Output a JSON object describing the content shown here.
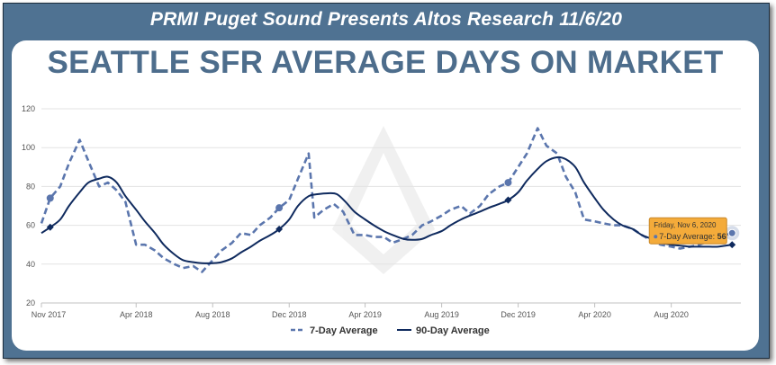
{
  "header": {
    "banner": "PRMI Puget Sound Presents Altos Research 11/6/20"
  },
  "chart_data": {
    "type": "line",
    "title": "SEATTLE SFR AVERAGE DAYS ON MARKET",
    "ylim": [
      20,
      120
    ],
    "yticks": [
      20,
      40,
      60,
      80,
      100,
      120
    ],
    "xlim": [
      "2017-11-01",
      "2020-11-20"
    ],
    "xticks": [
      {
        "date": "2017-11-01",
        "label": "Nov 2017"
      },
      {
        "date": "2018-04-01",
        "label": "Apr 2018"
      },
      {
        "date": "2018-08-01",
        "label": "Aug 2018"
      },
      {
        "date": "2018-12-01",
        "label": "Dec 2018"
      },
      {
        "date": "2019-04-01",
        "label": "Apr 2019"
      },
      {
        "date": "2019-08-01",
        "label": "Aug 2019"
      },
      {
        "date": "2019-12-01",
        "label": "Dec 2019"
      },
      {
        "date": "2020-04-01",
        "label": "Apr 2020"
      },
      {
        "date": "2020-08-01",
        "label": "Aug 2020"
      }
    ],
    "grid": true,
    "legend_position": "bottom",
    "colors": {
      "seven_day": "#5b76ad",
      "ninety_day": "#0f2a5e",
      "tooltip_bg": "#f4ab3a",
      "tooltip_border": "#c8882a"
    },
    "series": [
      {
        "name": "7-Day Average",
        "style": "dashed",
        "points": [
          [
            "2017-11-01",
            61
          ],
          [
            "2017-11-15",
            74
          ],
          [
            "2017-12-01",
            80
          ],
          [
            "2017-12-15",
            92
          ],
          [
            "2018-01-01",
            104
          ],
          [
            "2018-01-15",
            93
          ],
          [
            "2018-02-01",
            80
          ],
          [
            "2018-02-15",
            82
          ],
          [
            "2018-03-01",
            78
          ],
          [
            "2018-03-15",
            72
          ],
          [
            "2018-04-01",
            50
          ],
          [
            "2018-04-15",
            50
          ],
          [
            "2018-05-01",
            47
          ],
          [
            "2018-05-15",
            43
          ],
          [
            "2018-06-01",
            40
          ],
          [
            "2018-06-15",
            38
          ],
          [
            "2018-07-01",
            39
          ],
          [
            "2018-07-15",
            36
          ],
          [
            "2018-08-01",
            42
          ],
          [
            "2018-08-15",
            47
          ],
          [
            "2018-09-01",
            51
          ],
          [
            "2018-09-15",
            56
          ],
          [
            "2018-10-01",
            55
          ],
          [
            "2018-10-15",
            60
          ],
          [
            "2018-11-01",
            64
          ],
          [
            "2018-11-15",
            69
          ],
          [
            "2018-12-01",
            73
          ],
          [
            "2018-12-15",
            84
          ],
          [
            "2019-01-01",
            97
          ],
          [
            "2019-01-10",
            64
          ],
          [
            "2019-01-25",
            68
          ],
          [
            "2019-02-10",
            71
          ],
          [
            "2019-02-25",
            67
          ],
          [
            "2019-03-15",
            55
          ],
          [
            "2019-04-01",
            55
          ],
          [
            "2019-04-15",
            54
          ],
          [
            "2019-05-01",
            54
          ],
          [
            "2019-05-15",
            51
          ],
          [
            "2019-06-01",
            53
          ],
          [
            "2019-06-15",
            55
          ],
          [
            "2019-07-01",
            60
          ],
          [
            "2019-07-15",
            62
          ],
          [
            "2019-08-01",
            65
          ],
          [
            "2019-08-15",
            68
          ],
          [
            "2019-09-01",
            70
          ],
          [
            "2019-09-15",
            66
          ],
          [
            "2019-10-01",
            70
          ],
          [
            "2019-10-15",
            76
          ],
          [
            "2019-11-01",
            80
          ],
          [
            "2019-11-15",
            82
          ],
          [
            "2019-12-01",
            90
          ],
          [
            "2019-12-15",
            97
          ],
          [
            "2020-01-01",
            110
          ],
          [
            "2020-01-15",
            101
          ],
          [
            "2020-02-01",
            97
          ],
          [
            "2020-02-15",
            85
          ],
          [
            "2020-03-01",
            77
          ],
          [
            "2020-03-15",
            63
          ],
          [
            "2020-04-01",
            62
          ],
          [
            "2020-04-15",
            61
          ],
          [
            "2020-05-01",
            60
          ],
          [
            "2020-05-15",
            60
          ],
          [
            "2020-06-01",
            58
          ],
          [
            "2020-06-15",
            55
          ],
          [
            "2020-07-01",
            52
          ],
          [
            "2020-07-15",
            50
          ],
          [
            "2020-08-01",
            49
          ],
          [
            "2020-08-15",
            48
          ],
          [
            "2020-09-01",
            49
          ],
          [
            "2020-09-15",
            50
          ],
          [
            "2020-10-01",
            52
          ],
          [
            "2020-10-15",
            54
          ],
          [
            "2020-11-06",
            56
          ]
        ],
        "markers": [
          "2017-11-15",
          "2018-11-15",
          "2019-11-15",
          "2020-11-06"
        ]
      },
      {
        "name": "90-Day Average",
        "style": "solid",
        "points": [
          [
            "2017-11-01",
            56
          ],
          [
            "2017-11-15",
            59
          ],
          [
            "2017-12-01",
            63
          ],
          [
            "2017-12-15",
            70
          ],
          [
            "2018-01-01",
            77
          ],
          [
            "2018-01-15",
            82
          ],
          [
            "2018-02-01",
            84
          ],
          [
            "2018-02-15",
            85
          ],
          [
            "2018-03-01",
            82
          ],
          [
            "2018-03-15",
            75
          ],
          [
            "2018-04-01",
            68
          ],
          [
            "2018-04-15",
            62
          ],
          [
            "2018-05-01",
            56
          ],
          [
            "2018-05-15",
            50
          ],
          [
            "2018-06-01",
            45
          ],
          [
            "2018-06-15",
            42
          ],
          [
            "2018-07-01",
            41
          ],
          [
            "2018-07-15",
            40.5
          ],
          [
            "2018-08-01",
            40.5
          ],
          [
            "2018-08-15",
            41
          ],
          [
            "2018-09-01",
            43
          ],
          [
            "2018-09-15",
            46
          ],
          [
            "2018-10-01",
            49
          ],
          [
            "2018-10-15",
            52
          ],
          [
            "2018-11-01",
            55
          ],
          [
            "2018-11-15",
            58
          ],
          [
            "2018-12-01",
            63
          ],
          [
            "2018-12-15",
            70
          ],
          [
            "2019-01-01",
            75
          ],
          [
            "2019-01-15",
            76
          ],
          [
            "2019-02-01",
            76.5
          ],
          [
            "2019-02-15",
            76
          ],
          [
            "2019-03-01",
            72
          ],
          [
            "2019-03-15",
            67
          ],
          [
            "2019-04-01",
            63
          ],
          [
            "2019-04-15",
            60
          ],
          [
            "2019-05-01",
            57
          ],
          [
            "2019-05-15",
            55
          ],
          [
            "2019-06-01",
            53
          ],
          [
            "2019-06-15",
            52.5
          ],
          [
            "2019-07-01",
            53
          ],
          [
            "2019-07-15",
            55
          ],
          [
            "2019-08-01",
            57
          ],
          [
            "2019-08-15",
            60
          ],
          [
            "2019-09-01",
            63
          ],
          [
            "2019-09-15",
            65
          ],
          [
            "2019-10-01",
            67
          ],
          [
            "2019-10-15",
            69
          ],
          [
            "2019-11-01",
            71
          ],
          [
            "2019-11-15",
            73
          ],
          [
            "2019-12-01",
            77
          ],
          [
            "2019-12-15",
            83
          ],
          [
            "2020-01-01",
            89
          ],
          [
            "2020-01-15",
            93
          ],
          [
            "2020-02-01",
            95
          ],
          [
            "2020-02-15",
            94
          ],
          [
            "2020-03-01",
            90
          ],
          [
            "2020-03-15",
            82
          ],
          [
            "2020-04-01",
            74
          ],
          [
            "2020-04-15",
            68
          ],
          [
            "2020-05-01",
            63
          ],
          [
            "2020-05-15",
            60
          ],
          [
            "2020-06-01",
            58
          ],
          [
            "2020-06-15",
            55
          ],
          [
            "2020-07-01",
            53
          ],
          [
            "2020-07-15",
            51
          ],
          [
            "2020-08-01",
            50
          ],
          [
            "2020-08-15",
            49.5
          ],
          [
            "2020-09-01",
            49
          ],
          [
            "2020-09-15",
            49
          ],
          [
            "2020-10-01",
            49
          ],
          [
            "2020-10-15",
            49
          ],
          [
            "2020-11-06",
            50
          ]
        ],
        "markers": [
          "2017-11-15",
          "2018-11-15",
          "2019-11-15",
          "2020-11-06"
        ]
      }
    ],
    "tooltip": {
      "date": "2020-11-06",
      "title": "Friday, Nov 6, 2020",
      "label": "7-Day Average:",
      "value": "56"
    }
  }
}
